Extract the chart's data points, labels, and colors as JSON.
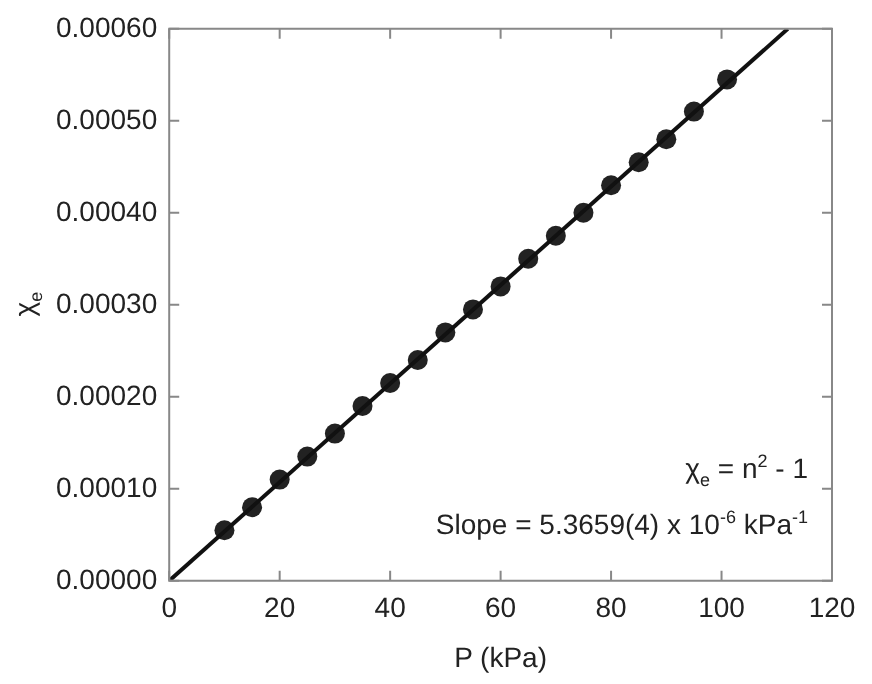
{
  "chart_data": {
    "type": "scatter",
    "xlabel": "P (kPa)",
    "ylabel": "χ$_{e}$",
    "xlim": [
      0,
      120
    ],
    "xticks": [
      0,
      20,
      40,
      60,
      80,
      100,
      120
    ],
    "ylim": [
      0,
      0.0006
    ],
    "yticks": [
      {
        "value": 0,
        "label": "0.00000"
      },
      {
        "value": 0.0001,
        "label": "0.00010"
      },
      {
        "value": 0.0002,
        "label": "0.00020"
      },
      {
        "value": 0.0003,
        "label": "0.00030"
      },
      {
        "value": 0.0004,
        "label": "0.00040"
      },
      {
        "value": 0.0005,
        "label": "0.00050"
      },
      {
        "value": 0.0006,
        "label": "0.00060"
      }
    ],
    "series": [
      {
        "type": "line",
        "color": "#111111",
        "marker": "none",
        "line_style": "solid",
        "x": [
          0,
          112
        ],
        "values": [
          0,
          0.0006
        ]
      },
      {
        "type": "scatter",
        "color": "#222222",
        "marker": "circle",
        "x": [
          10,
          15,
          20,
          25,
          30,
          35,
          40,
          45,
          50,
          55,
          60,
          65,
          70,
          75,
          80,
          85,
          90,
          95,
          101
        ],
        "values": [
          5.5e-05,
          8e-05,
          0.00011,
          0.000135,
          0.00016,
          0.00019,
          0.000215,
          0.00024,
          0.00027,
          0.000295,
          0.00032,
          0.00035,
          0.000375,
          0.0004,
          0.00043,
          0.000455,
          0.00048,
          0.00051,
          0.000545
        ]
      }
    ],
    "annotations": [
      "χ$_{e}$ = n$^{2}$ - 1",
      "Slope = 5.3659(4) x 10$^{-6}$ kPa$^{-1}$"
    ],
    "legend": false
  }
}
